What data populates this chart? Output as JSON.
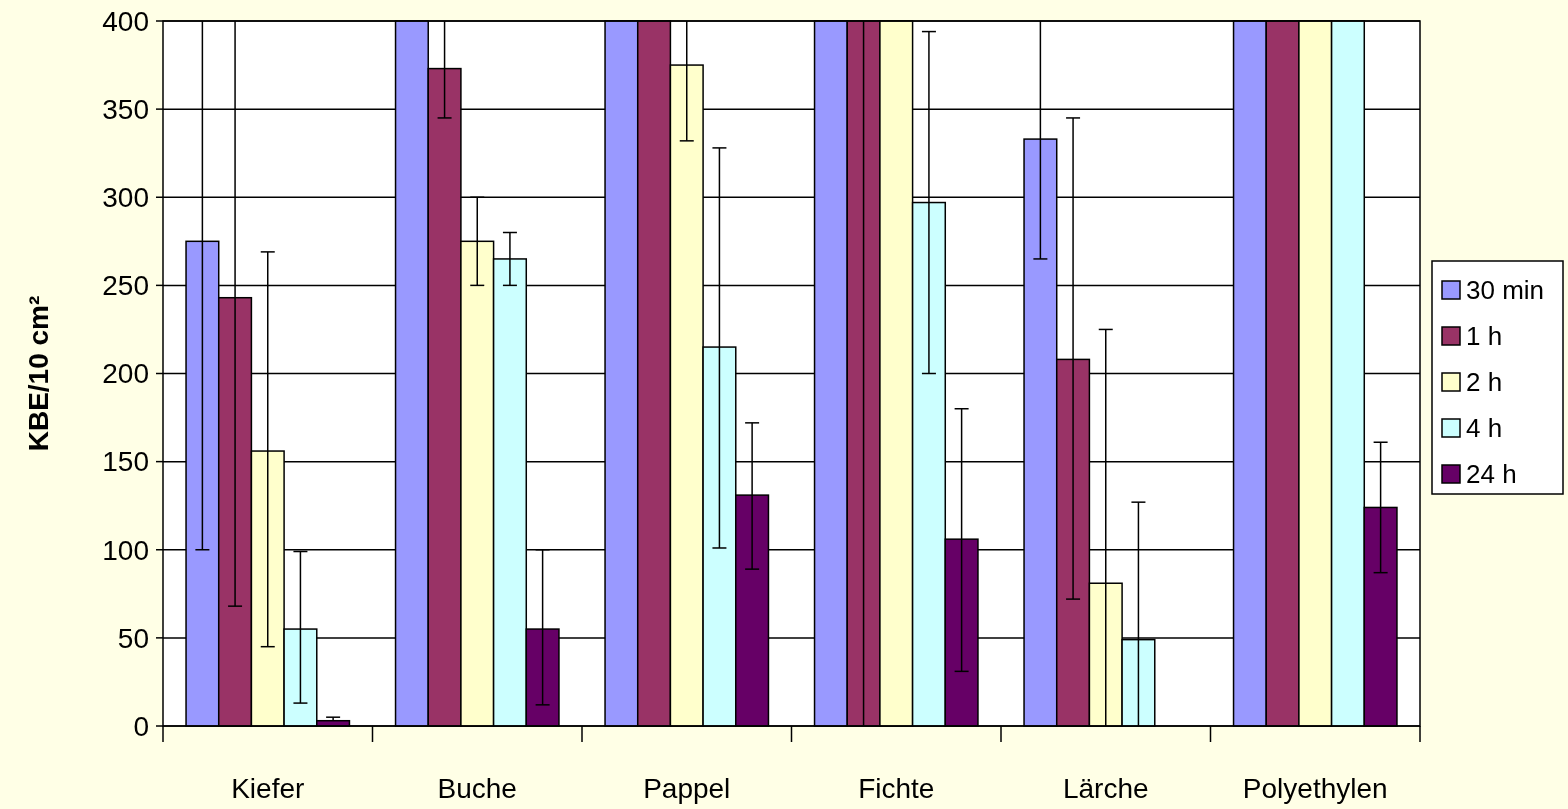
{
  "chart_data": {
    "type": "bar",
    "ylabel": "KBE/10 cm²",
    "categories": [
      "Kiefer",
      "Buche",
      "Pappel",
      "Fichte",
      "Lärche",
      "Polyethylen"
    ],
    "series": [
      {
        "name": "30 min",
        "color": "#9999ff",
        "values": [
          275,
          400,
          400,
          400,
          333,
          400
        ],
        "errors": [
          [
            100,
            400
          ],
          null,
          null,
          null,
          [
            265,
            400
          ],
          null
        ]
      },
      {
        "name": "1 h",
        "color": "#993366",
        "values": [
          243,
          373,
          400,
          400,
          208,
          400
        ],
        "errors": [
          [
            68,
            400
          ],
          [
            345,
            400
          ],
          null,
          [
            0,
            400
          ],
          [
            72,
            345
          ],
          null
        ]
      },
      {
        "name": "2 h",
        "color": "#ffffcc",
        "values": [
          156,
          275,
          375,
          400,
          81,
          400
        ],
        "errors": [
          [
            45,
            269
          ],
          [
            250,
            300
          ],
          [
            332,
            400
          ],
          null,
          [
            0,
            225
          ],
          null
        ]
      },
      {
        "name": "4 h",
        "color": "#ccffff",
        "values": [
          55,
          265,
          215,
          297,
          49,
          400
        ],
        "errors": [
          [
            13,
            99
          ],
          [
            250,
            280
          ],
          [
            101,
            328
          ],
          [
            200,
            394
          ],
          [
            0,
            127
          ],
          null
        ]
      },
      {
        "name": "24 h",
        "color": "#660066",
        "values": [
          3,
          55,
          131,
          106,
          null,
          124
        ],
        "errors": [
          [
            3,
            5
          ],
          [
            12,
            100
          ],
          [
            89,
            172
          ],
          [
            31,
            180
          ],
          null,
          [
            87,
            161
          ]
        ]
      }
    ],
    "ylim": [
      0,
      400
    ],
    "yticks": [
      0,
      50,
      100,
      150,
      200,
      250,
      300,
      350,
      400
    ],
    "grid": "y",
    "legend": "right"
  }
}
